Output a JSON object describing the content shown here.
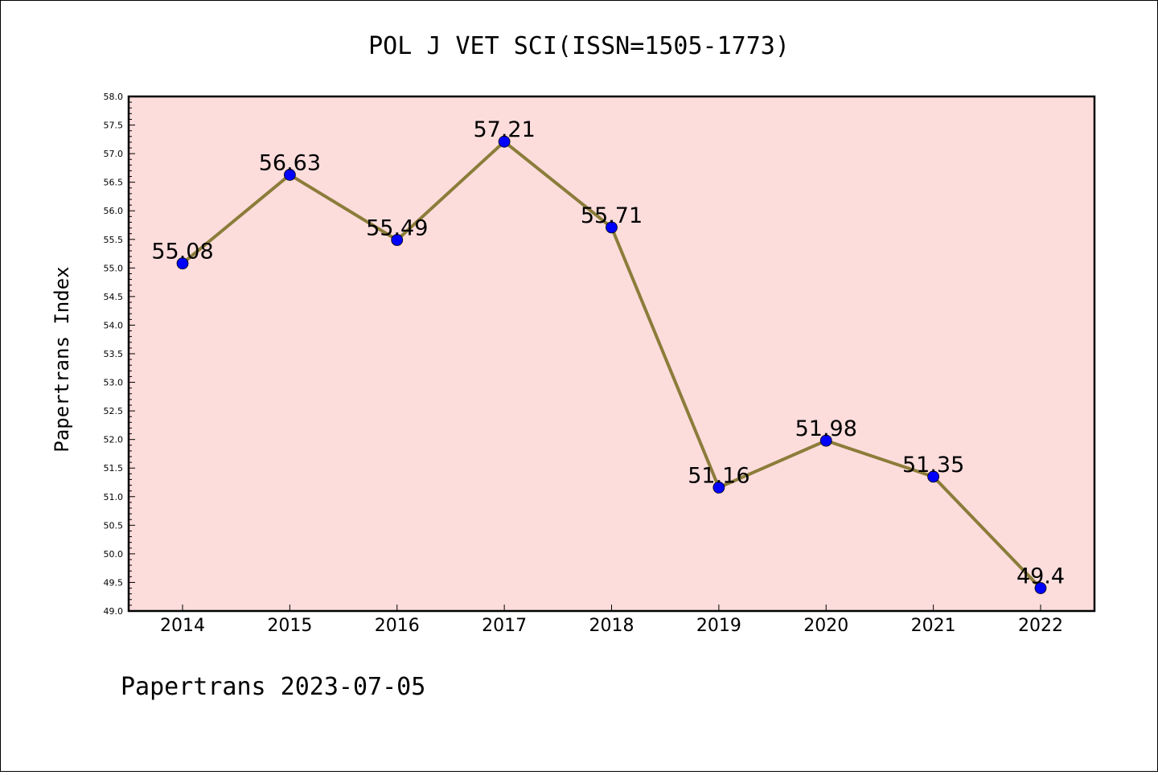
{
  "header": {
    "title": "POL J VET SCI(ISSN=1505-1773)"
  },
  "footer": {
    "text": "Papertrans 2023-07-05"
  },
  "colors": {
    "plot_background": "#fddcdc",
    "line": "#8b7d3a",
    "marker": "#0000ff"
  },
  "chart_data": {
    "type": "line",
    "title": "POL J VET SCI(ISSN=1505-1773)",
    "xlabel": "",
    "ylabel": "Papertrans Index",
    "categories": [
      "2014",
      "2015",
      "2016",
      "2017",
      "2018",
      "2019",
      "2020",
      "2021",
      "2022"
    ],
    "series": [
      {
        "values": [
          55.08,
          56.63,
          55.49,
          57.21,
          55.71,
          51.16,
          51.98,
          51.35,
          49.4
        ],
        "labels": [
          "55.08",
          "56.63",
          "55.49",
          "57.21",
          "55.71",
          "51.16",
          "51.98",
          "51.35",
          "49.4"
        ]
      }
    ],
    "ylim": [
      49.0,
      58.0
    ],
    "yticks": [
      "49.0",
      "49.5",
      "50.0",
      "50.5",
      "51.0",
      "51.5",
      "52.0",
      "52.5",
      "53.0",
      "53.5",
      "54.0",
      "54.5",
      "55.0",
      "55.5",
      "56.0",
      "56.5",
      "57.0",
      "57.5",
      "58.0"
    ],
    "grid": false,
    "legend": "none"
  }
}
